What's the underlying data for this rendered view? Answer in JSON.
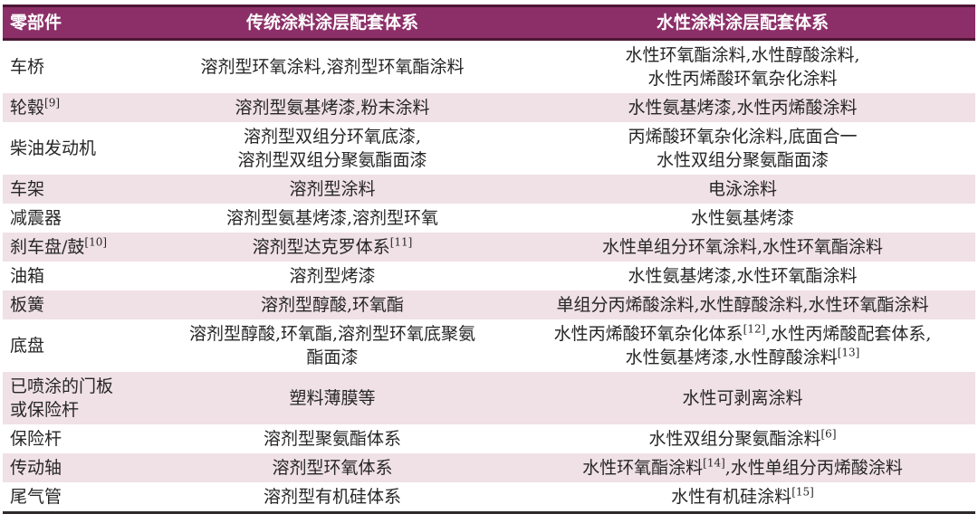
{
  "colors": {
    "header_bg": "#8C2F68",
    "header_text": "#FFFFFF",
    "header_border": "#4D1636",
    "row_stripe": "#F0E1E6",
    "row_plain": "#FFFFFF",
    "body_text": "#262626",
    "bottom_border": "#2E2A2B"
  },
  "table": {
    "columns": [
      {
        "label": "零部件"
      },
      {
        "label": "传统涂料涂层配套体系"
      },
      {
        "label": "水性涂料涂层配套体系"
      }
    ],
    "rows": [
      {
        "part": "车桥",
        "traditional": "溶剂型环氧涂料,溶剂型环氧酯涂料",
        "waterborne": "水性环氧酯涂料,水性醇酸涂料,\n水性丙烯酸环氧杂化涂料"
      },
      {
        "part": "轮毂[9]",
        "traditional": "溶剂型氨基烤漆,粉末涂料",
        "waterborne": "水性氨基烤漆,水性丙烯酸涂料"
      },
      {
        "part": "柴油发动机",
        "traditional": "溶剂型双组分环氧底漆,\n溶剂型双组分聚氨酯面漆",
        "waterborne": "丙烯酸环氧杂化涂料,底面合一\n水性双组分聚氨酯面漆"
      },
      {
        "part": "车架",
        "traditional": "溶剂型涂料",
        "waterborne": "电泳涂料"
      },
      {
        "part": "减震器",
        "traditional": "溶剂型氨基烤漆,溶剂型环氧",
        "waterborne": "水性氨基烤漆"
      },
      {
        "part": "刹车盘/鼓[10]",
        "traditional": "溶剂型达克罗体系[11]",
        "waterborne": "水性单组分环氧涂料,水性环氧酯涂料"
      },
      {
        "part": "油箱",
        "traditional": "溶剂型烤漆",
        "waterborne": "水性氨基烤漆,水性环氧酯涂料"
      },
      {
        "part": "板簧",
        "traditional": "溶剂型醇酸,环氧酯",
        "waterborne": "单组分丙烯酸涂料,水性醇酸涂料,水性环氧酯涂料"
      },
      {
        "part": "底盘",
        "traditional": "溶剂型醇酸,环氧酯,溶剂型环氧底聚氨\n酯面漆",
        "waterborne": "水性丙烯酸环氧杂化体系[12],水性丙烯酸配套体系,\n水性氨基烤漆,水性醇酸涂料[13]"
      },
      {
        "part": "已喷涂的门板\n或保险杆",
        "traditional": "塑料薄膜等",
        "waterborne": "水性可剥离涂料"
      },
      {
        "part": "保险杆",
        "traditional": "溶剂型聚氨酯体系",
        "waterborne": "水性双组分聚氨酯涂料[6]"
      },
      {
        "part": "传动轴",
        "traditional": "溶剂型环氧体系",
        "waterborne": "水性环氧酯涂料[14],水性单组分丙烯酸涂料"
      },
      {
        "part": "尾气管",
        "traditional": "溶剂型有机硅体系",
        "waterborne": "水性有机硅涂料[15]"
      }
    ]
  }
}
